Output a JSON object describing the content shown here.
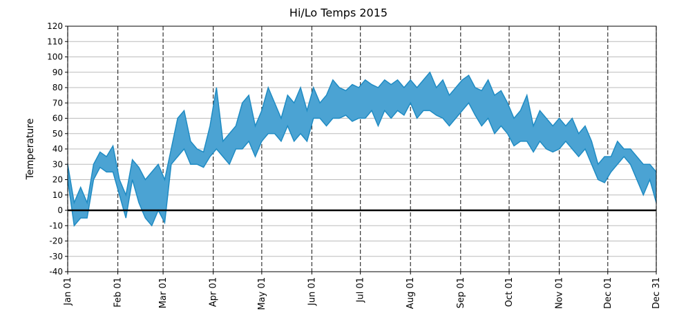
{
  "chart_data": {
    "type": "fill_between",
    "title": "Hi/Lo Temps 2015",
    "ylabel": "Temperature",
    "x": [
      0,
      4,
      8,
      12,
      16,
      20,
      24,
      28,
      32,
      36,
      40,
      44,
      48,
      52,
      56,
      60,
      64,
      68,
      72,
      76,
      80,
      84,
      88,
      92,
      96,
      100,
      104,
      108,
      112,
      116,
      120,
      124,
      128,
      132,
      136,
      140,
      144,
      148,
      152,
      156,
      160,
      164,
      168,
      172,
      176,
      180,
      184,
      188,
      192,
      196,
      200,
      204,
      208,
      212,
      216,
      220,
      224,
      228,
      232,
      236,
      240,
      244,
      248,
      252,
      256,
      260,
      264,
      268,
      272,
      276,
      280,
      284,
      288,
      292,
      296,
      300,
      304,
      308,
      312,
      316,
      320,
      324,
      328,
      332,
      336,
      340,
      344,
      348,
      352,
      356,
      360,
      364
    ],
    "high": [
      30,
      5,
      15,
      5,
      30,
      38,
      35,
      42,
      20,
      10,
      33,
      28,
      20,
      25,
      30,
      20,
      40,
      60,
      65,
      45,
      40,
      38,
      55,
      80,
      45,
      50,
      55,
      70,
      75,
      55,
      65,
      80,
      70,
      60,
      75,
      70,
      80,
      65,
      80,
      70,
      75,
      85,
      80,
      78,
      82,
      80,
      85,
      82,
      80,
      85,
      82,
      85,
      80,
      85,
      80,
      85,
      90,
      80,
      85,
      75,
      80,
      85,
      88,
      80,
      78,
      85,
      75,
      78,
      70,
      60,
      65,
      75,
      55,
      65,
      60,
      55,
      60,
      55,
      60,
      50,
      55,
      45,
      30,
      35,
      35,
      45,
      40,
      40,
      35,
      30,
      30,
      25
    ],
    "low": [
      20,
      -10,
      -5,
      -5,
      20,
      28,
      25,
      25,
      10,
      -5,
      20,
      5,
      -5,
      -10,
      0,
      -8,
      30,
      35,
      40,
      30,
      30,
      28,
      35,
      40,
      35,
      30,
      40,
      40,
      45,
      35,
      45,
      50,
      50,
      45,
      55,
      45,
      50,
      45,
      60,
      60,
      55,
      60,
      60,
      62,
      58,
      60,
      60,
      65,
      55,
      65,
      60,
      65,
      62,
      70,
      60,
      65,
      65,
      62,
      60,
      55,
      60,
      65,
      70,
      62,
      55,
      60,
      50,
      55,
      50,
      42,
      45,
      45,
      38,
      45,
      40,
      38,
      40,
      45,
      40,
      35,
      40,
      30,
      20,
      18,
      25,
      30,
      35,
      30,
      20,
      10,
      20,
      5
    ],
    "color": "#4ba3d3",
    "edge_color": "#1f8bc3",
    "xlim": [
      0,
      364
    ],
    "xticks": [
      {
        "value": 0,
        "label": "Jan 01"
      },
      {
        "value": 31,
        "label": "Feb 01"
      },
      {
        "value": 59,
        "label": "Mar 01"
      },
      {
        "value": 90,
        "label": "Apr 01"
      },
      {
        "value": 120,
        "label": "May 01"
      },
      {
        "value": 151,
        "label": "Jun 01"
      },
      {
        "value": 181,
        "label": "Jul 01"
      },
      {
        "value": 212,
        "label": "Aug 01"
      },
      {
        "value": 243,
        "label": "Sep 01"
      },
      {
        "value": 273,
        "label": "Oct 01"
      },
      {
        "value": 304,
        "label": "Nov 01"
      },
      {
        "value": 334,
        "label": "Dec 01"
      },
      {
        "value": 364,
        "label": "Dec 31"
      }
    ],
    "ylim": [
      -40,
      120
    ],
    "yticks": [
      -40,
      -30,
      -20,
      -10,
      0,
      10,
      20,
      30,
      40,
      50,
      60,
      70,
      80,
      90,
      100,
      110,
      120
    ],
    "grid": true,
    "hline": 0
  }
}
